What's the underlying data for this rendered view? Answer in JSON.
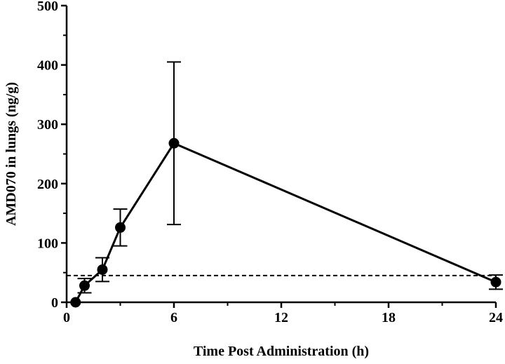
{
  "chart_data": {
    "type": "line",
    "title": "",
    "xlabel": "Time Post Administration (h)",
    "ylabel": "AMD070 in lungs (ng/g)",
    "xlim": [
      0,
      24
    ],
    "ylim": [
      0,
      500
    ],
    "x_ticks": [
      0,
      6,
      12,
      18,
      24
    ],
    "y_ticks": [
      0,
      100,
      200,
      300,
      400,
      500
    ],
    "grid": false,
    "series": [
      {
        "x": [
          0.5,
          1,
          2,
          3,
          6,
          24
        ],
        "y": [
          0,
          28,
          55,
          126,
          268,
          34
        ],
        "error": [
          0,
          12,
          20,
          31,
          137,
          12
        ],
        "color": "#000000"
      }
    ],
    "reference_line": {
      "y": 45,
      "style": "dashed"
    }
  }
}
